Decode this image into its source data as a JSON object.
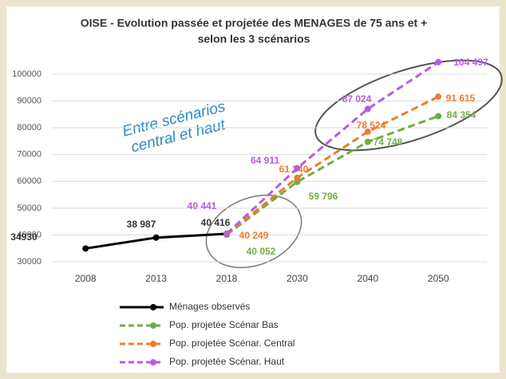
{
  "chart_data": {
    "type": "line",
    "title": [
      "OISE - Evolution passée et projetée des MENAGES de 75 ans et +",
      "selon les 3 scénarios"
    ],
    "annotation": "Entre scénarios central et haut",
    "categories": [
      "2008",
      "2013",
      "2018",
      "2030",
      "2040",
      "2050"
    ],
    "ylim": [
      30000,
      100000
    ],
    "yticks": [
      30000,
      40000,
      50000,
      60000,
      70000,
      80000,
      90000,
      100000
    ],
    "grid": true,
    "legend": "bottom",
    "series": [
      {
        "name": "Ménages observés",
        "color": "#000000",
        "dashed": false,
        "values": [
          34930,
          38987,
          40416,
          null,
          null,
          null
        ],
        "value_labels": [
          "34930",
          "38 987",
          "40 416",
          null,
          null,
          null
        ]
      },
      {
        "name": "Pop. projetée Scénar Bas",
        "color": "#70ad47",
        "dashed": true,
        "values": [
          null,
          null,
          40052,
          59796,
          74748,
          84354
        ],
        "value_labels": [
          null,
          null,
          "40 052",
          "59 796",
          "74 748",
          "84 354"
        ]
      },
      {
        "name": "Pop. projetée Scénar. Central",
        "color": "#ed7d31",
        "dashed": true,
        "values": [
          null,
          null,
          40249,
          61340,
          78524,
          91615
        ],
        "value_labels": [
          null,
          null,
          "40 249",
          "61 340",
          "78 524",
          "91 615"
        ]
      },
      {
        "name": "Pop. projetée Scénar. Haut",
        "color": "#b45ee0",
        "dashed": true,
        "values": [
          null,
          null,
          40441,
          64911,
          87024,
          104497
        ],
        "value_labels": [
          null,
          null,
          "40 441",
          "64 911",
          "87 024",
          "104 497"
        ]
      }
    ]
  }
}
